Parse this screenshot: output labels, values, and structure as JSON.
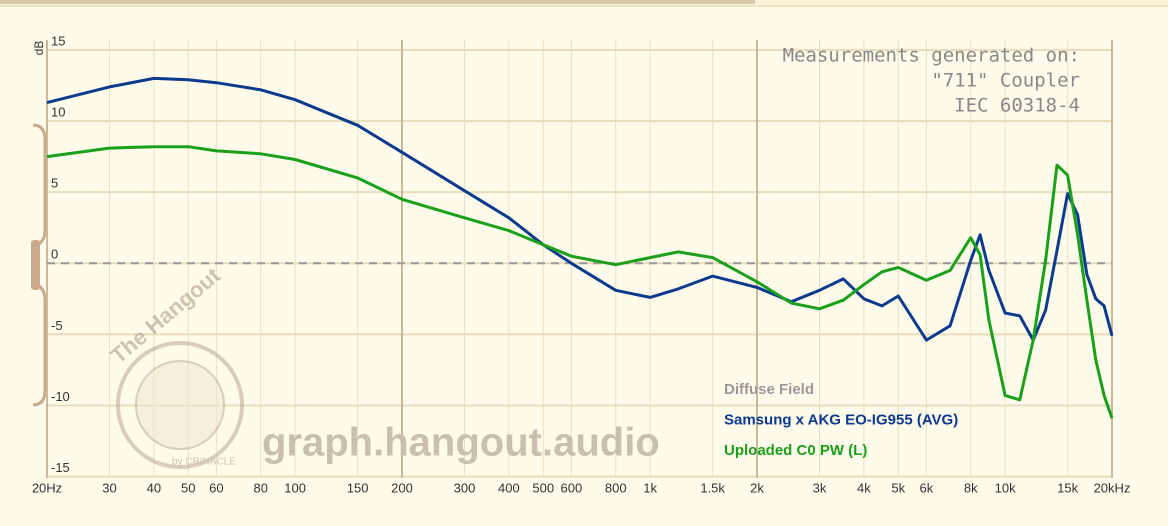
{
  "chart_data": {
    "type": "line",
    "y_label": "dB",
    "annotations": [
      "Measurements generated on:",
      "\"711\" Coupler",
      "IEC 60318-4"
    ],
    "watermark": "graph.hangout.audio",
    "logo_text": "The Hangout",
    "logo_byline": "by CRINACLE",
    "xscale": "log",
    "grid": true,
    "xlim": [
      20,
      20000
    ],
    "ylim": [
      -15.1,
      15.7
    ],
    "xticks": [
      {
        "value": 20,
        "label": "20Hz"
      },
      30,
      40,
      50,
      60,
      80,
      100,
      150,
      200,
      300,
      400,
      500,
      600,
      800,
      {
        "value": 1000,
        "label": "1k"
      },
      {
        "value": 1500,
        "label": "1.5k"
      },
      {
        "value": 2000,
        "label": "2k"
      },
      {
        "value": 3000,
        "label": "3k"
      },
      {
        "value": 4000,
        "label": "4k"
      },
      {
        "value": 5000,
        "label": "5k"
      },
      {
        "value": 6000,
        "label": "6k"
      },
      {
        "value": 8000,
        "label": "8k"
      },
      {
        "value": 10000,
        "label": "10k"
      },
      {
        "value": 15000,
        "label": "15k"
      },
      {
        "value": 20000,
        "label": "20kHz"
      }
    ],
    "yticks": [
      15,
      10,
      5,
      0,
      -5,
      -10,
      -15
    ],
    "x": [
      20,
      30,
      40,
      50,
      60,
      80,
      100,
      150,
      200,
      300,
      400,
      500,
      600,
      800,
      1000,
      1200,
      1500,
      2000,
      2500,
      3000,
      3500,
      4000,
      4500,
      5000,
      6000,
      7000,
      8000,
      8500,
      9000,
      10000,
      11000,
      12000,
      13000,
      14000,
      15000,
      16000,
      17000,
      18000,
      19000,
      20000
    ],
    "series": [
      {
        "name": "Diffuse Field",
        "color": "#999999",
        "dashed": true,
        "values": [
          0,
          0,
          0,
          0,
          0,
          0,
          0,
          0,
          0,
          0,
          0,
          0,
          0,
          0,
          0,
          0,
          0,
          0,
          0,
          0,
          0,
          0,
          0,
          0,
          0,
          0,
          0,
          0,
          0,
          0,
          0,
          0,
          0,
          0,
          0,
          0,
          0,
          0,
          0,
          0
        ]
      },
      {
        "name": "Samsung x AKG EO-IG955 (AVG)",
        "color": "#0b3a8f",
        "values": [
          11.3,
          12.4,
          13.0,
          12.9,
          12.7,
          12.2,
          11.5,
          9.7,
          7.8,
          5.1,
          3.2,
          1.3,
          0,
          -1.9,
          -2.4,
          -1.8,
          -0.9,
          -1.7,
          -2.7,
          -1.9,
          -1.1,
          -2.5,
          -3.0,
          -2.3,
          -5.4,
          -4.4,
          0.2,
          2.0,
          -0.5,
          -3.5,
          -3.7,
          -5.4,
          -3.3,
          0.9,
          4.9,
          3.4,
          -0.8,
          -2.5,
          -3.0,
          -5.1
        ]
      },
      {
        "name": "Uploaded C0 PW (L)",
        "color": "#1aa01a",
        "values": [
          7.5,
          8.1,
          8.2,
          8.2,
          7.9,
          7.7,
          7.3,
          6.0,
          4.5,
          3.2,
          2.3,
          1.3,
          0.5,
          -0.1,
          0.4,
          0.8,
          0.4,
          -1.3,
          -2.8,
          -3.2,
          -2.6,
          -1.5,
          -0.6,
          -0.3,
          -1.2,
          -0.5,
          1.8,
          0.6,
          -4.0,
          -9.3,
          -9.6,
          -5.4,
          0.2,
          6.9,
          6.2,
          2.0,
          -2.6,
          -6.8,
          -9.3,
          -10.9
        ]
      }
    ]
  }
}
